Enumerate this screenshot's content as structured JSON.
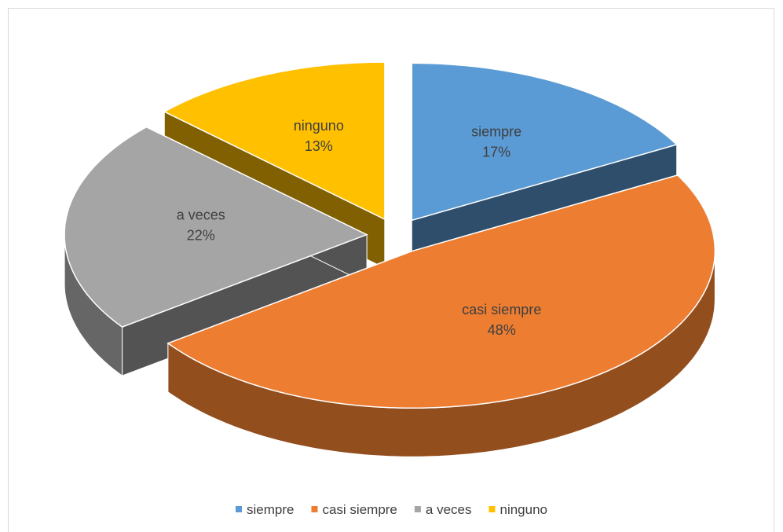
{
  "chart_data": {
    "type": "pie",
    "categories": [
      "siempre",
      "casi siempre",
      "a veces",
      "ninguno"
    ],
    "values": [
      17,
      48,
      22,
      13
    ],
    "value_labels": [
      "17%",
      "48%",
      "22%",
      "13%"
    ],
    "colors": [
      "#5b9bd5",
      "#ed7d31",
      "#a5a5a5",
      "#ffc000"
    ],
    "legend": "bottom"
  }
}
